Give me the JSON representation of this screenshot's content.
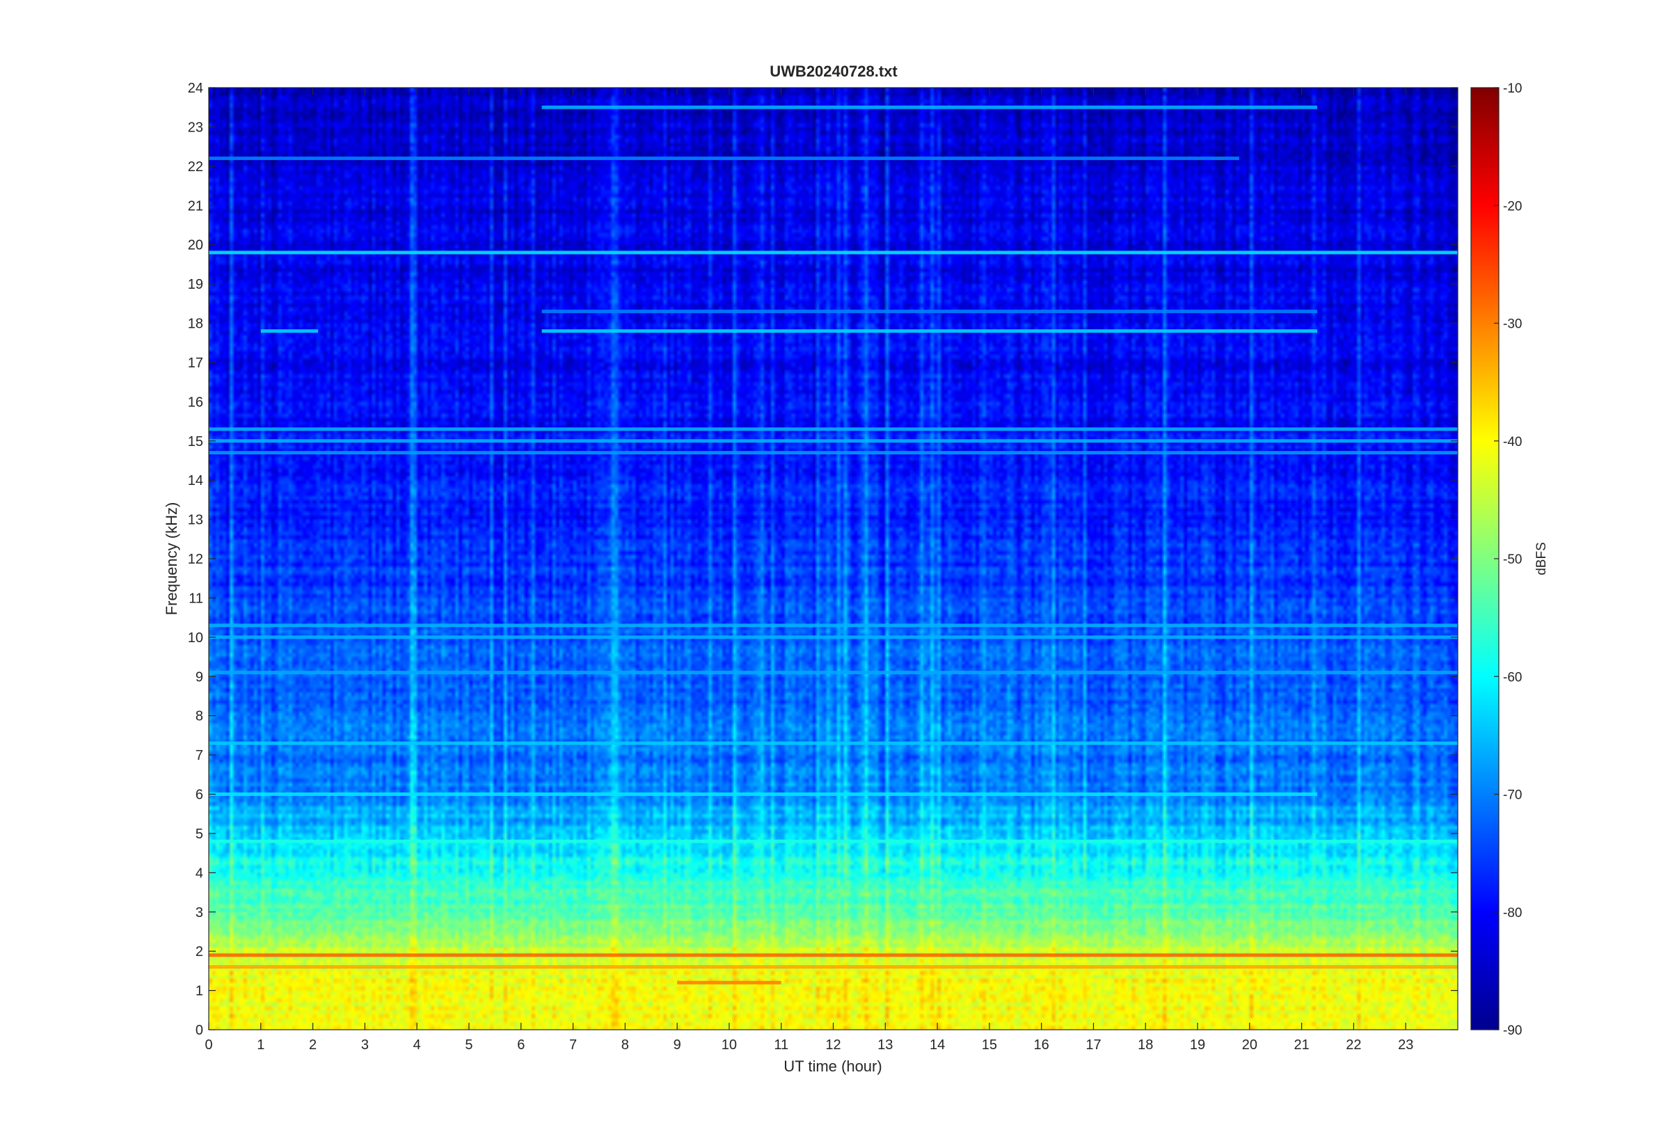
{
  "chart_data": {
    "type": "heatmap",
    "title": "UWB20240728.txt",
    "xlabel": "UT time (hour)",
    "ylabel": "Frequency (kHz)",
    "xlim": [
      0,
      24
    ],
    "ylim": [
      0,
      24
    ],
    "x_ticks": [
      "0",
      "1",
      "2",
      "3",
      "4",
      "5",
      "6",
      "7",
      "8",
      "9",
      "10",
      "11",
      "12",
      "13",
      "14",
      "15",
      "16",
      "17",
      "18",
      "19",
      "20",
      "21",
      "22",
      "23"
    ],
    "y_ticks": [
      "0",
      "1",
      "2",
      "3",
      "4",
      "5",
      "6",
      "7",
      "8",
      "9",
      "10",
      "11",
      "12",
      "13",
      "14",
      "15",
      "16",
      "17",
      "18",
      "19",
      "20",
      "21",
      "22",
      "23",
      "24"
    ],
    "colorbar": {
      "label": "dBFS",
      "colormap": "jet",
      "limits": [
        -90,
        -10
      ],
      "ticks": [
        "-10",
        "-20",
        "-30",
        "-40",
        "-50",
        "-60",
        "-70",
        "-80",
        "-90"
      ]
    },
    "background_profile_dbfs": [
      {
        "freq_khz": 0,
        "level": -42
      },
      {
        "freq_khz": 1,
        "level": -40
      },
      {
        "freq_khz": 2,
        "level": -44
      },
      {
        "freq_khz": 3,
        "level": -53
      },
      {
        "freq_khz": 4,
        "level": -58
      },
      {
        "freq_khz": 5,
        "level": -64
      },
      {
        "freq_khz": 6,
        "level": -70
      },
      {
        "freq_khz": 8,
        "level": -72
      },
      {
        "freq_khz": 10,
        "level": -74
      },
      {
        "freq_khz": 13,
        "level": -78
      },
      {
        "freq_khz": 16,
        "level": -80
      },
      {
        "freq_khz": 20,
        "level": -82
      },
      {
        "freq_khz": 24,
        "level": -85
      }
    ],
    "horizontal_lines_dbfs": [
      {
        "freq_khz": 19.8,
        "t_start": 0,
        "t_end": 24,
        "level": -62
      },
      {
        "freq_khz": 17.8,
        "t_start": 6.4,
        "t_end": 21.3,
        "level": -63
      },
      {
        "freq_khz": 17.8,
        "t_start": 1.0,
        "t_end": 2.1,
        "level": -63
      },
      {
        "freq_khz": 18.3,
        "t_start": 6.4,
        "t_end": 21.3,
        "level": -70
      },
      {
        "freq_khz": 23.5,
        "t_start": 6.4,
        "t_end": 21.3,
        "level": -66
      },
      {
        "freq_khz": 22.2,
        "t_start": 0,
        "t_end": 19.8,
        "level": -70
      },
      {
        "freq_khz": 15.3,
        "t_start": 0,
        "t_end": 24,
        "level": -66
      },
      {
        "freq_khz": 15.0,
        "t_start": 0,
        "t_end": 24,
        "level": -66
      },
      {
        "freq_khz": 14.7,
        "t_start": 0,
        "t_end": 24,
        "level": -68
      },
      {
        "freq_khz": 10.3,
        "t_start": 0,
        "t_end": 24,
        "level": -66
      },
      {
        "freq_khz": 10.0,
        "t_start": 0,
        "t_end": 24,
        "level": -66
      },
      {
        "freq_khz": 9.1,
        "t_start": 0,
        "t_end": 24,
        "level": -67
      },
      {
        "freq_khz": 7.3,
        "t_start": 0,
        "t_end": 24,
        "level": -64
      },
      {
        "freq_khz": 6.0,
        "t_start": 0,
        "t_end": 21.3,
        "level": -62
      },
      {
        "freq_khz": 4.8,
        "t_start": 0,
        "t_end": 24,
        "level": -58
      },
      {
        "freq_khz": 1.9,
        "t_start": 0,
        "t_end": 24,
        "level": -28
      },
      {
        "freq_khz": 1.6,
        "t_start": 0,
        "t_end": 24,
        "level": -33
      },
      {
        "freq_khz": 1.2,
        "t_start": 9.0,
        "t_end": 11.0,
        "level": -30
      }
    ]
  }
}
